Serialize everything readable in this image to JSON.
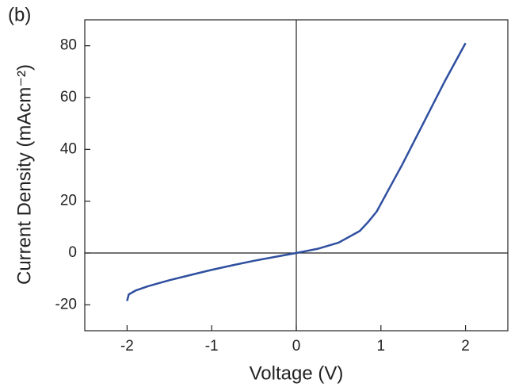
{
  "chart_data": {
    "type": "line",
    "panel_label": "(b)",
    "x_label": "Voltage (V)",
    "y_label": "Current Density (mAcm⁻²)",
    "x": [
      -2,
      -1.98,
      -1.9,
      -1.75,
      -1.5,
      -1.25,
      -1,
      -0.75,
      -0.5,
      -0.25,
      0,
      0.25,
      0.5,
      0.75,
      0.85,
      0.95,
      1,
      1.1,
      1.25,
      1.5,
      1.75,
      2
    ],
    "series": [
      {
        "color": "#2f4f9f",
        "values": [
          -18.5,
          -16,
          -14.5,
          -12.8,
          -10.5,
          -8.5,
          -6.5,
          -4.7,
          -3,
          -1.5,
          0,
          1.6,
          4,
          8.5,
          12,
          16,
          19,
          25,
          34,
          50,
          66,
          81
        ]
      }
    ],
    "xlim": [
      -2.5,
      2.5
    ],
    "xticks": [
      -2,
      -1,
      0,
      1,
      2
    ],
    "ylim": [
      -30,
      90
    ],
    "yticks": [
      -20,
      0,
      20,
      40,
      60,
      80
    ],
    "zero_lines": true
  }
}
